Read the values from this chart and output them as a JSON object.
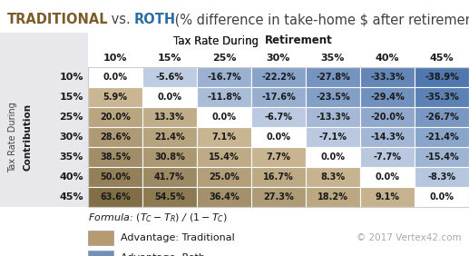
{
  "title_traditional": "TRADITIONAL",
  "title_vs": " vs. ",
  "title_roth": "ROTH",
  "title_rest": " (% difference in take-home $ after retirement)",
  "col_header_normal": "Tax Rate During ",
  "col_header_bold": "Retirement",
  "row_header_normal": "Tax Rate During",
  "row_header_bold": "Contribution",
  "col_labels": [
    "10%",
    "15%",
    "25%",
    "30%",
    "35%",
    "40%",
    "45%"
  ],
  "row_labels": [
    "10%",
    "15%",
    "25%",
    "30%",
    "35%",
    "40%",
    "45%"
  ],
  "values": [
    [
      "0.0%",
      "-5.6%",
      "-16.7%",
      "-22.2%",
      "-27.8%",
      "-33.3%",
      "-38.9%"
    ],
    [
      "5.9%",
      "0.0%",
      "-11.8%",
      "-17.6%",
      "-23.5%",
      "-29.4%",
      "-35.3%"
    ],
    [
      "20.0%",
      "13.3%",
      "0.0%",
      "-6.7%",
      "-13.3%",
      "-20.0%",
      "-26.7%"
    ],
    [
      "28.6%",
      "21.4%",
      "7.1%",
      "0.0%",
      "-7.1%",
      "-14.3%",
      "-21.4%"
    ],
    [
      "38.5%",
      "30.8%",
      "15.4%",
      "7.7%",
      "0.0%",
      "-7.7%",
      "-15.4%"
    ],
    [
      "50.0%",
      "41.7%",
      "25.0%",
      "16.7%",
      "8.3%",
      "0.0%",
      "-8.3%"
    ],
    [
      "63.6%",
      "54.5%",
      "36.4%",
      "27.3%",
      "18.2%",
      "9.1%",
      "0.0%"
    ]
  ],
  "numeric_values": [
    [
      0.0,
      -5.6,
      -16.7,
      -22.2,
      -27.8,
      -33.3,
      -38.9
    ],
    [
      5.9,
      0.0,
      -11.8,
      -17.6,
      -23.5,
      -29.4,
      -35.3
    ],
    [
      20.0,
      13.3,
      0.0,
      -6.7,
      -13.3,
      -20.0,
      -26.7
    ],
    [
      28.6,
      21.4,
      7.1,
      0.0,
      -7.1,
      -14.3,
      -21.4
    ],
    [
      38.5,
      30.8,
      15.4,
      7.7,
      0.0,
      -7.7,
      -15.4
    ],
    [
      50.0,
      41.7,
      25.0,
      16.7,
      8.3,
      0.0,
      -8.3
    ],
    [
      63.6,
      54.5,
      36.4,
      27.3,
      18.2,
      9.1,
      0.0
    ]
  ],
  "title_color_traditional": "#7B5B2A",
  "title_color_roth": "#2E6FA3",
  "title_color_rest": "#404040",
  "header_bg": "#E8E8EC",
  "formula_text": "Formula: (T",
  "legend_trad_color": "#B89A70",
  "legend_roth_color": "#7090BB",
  "legend_trad_text": "Advantage: Traditional",
  "legend_roth_text": "Advantage: Roth",
  "copyright": "© 2017 Vertex42.com",
  "background_color": "#FFFFFF",
  "cell_text_color": "#1a1a1a",
  "row_label_color": "#1a1a1a",
  "col_label_color": "#1a1a1a"
}
